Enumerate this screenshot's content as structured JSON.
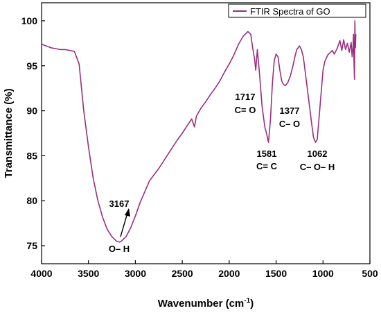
{
  "chart_data": {
    "type": "line",
    "title": "",
    "xlabel": "Wavenumber (cm",
    "xlabel_sup": "-1",
    "xlabel_end": ")",
    "ylabel": "Transmittance (%)",
    "xlim": [
      4000,
      500
    ],
    "ylim": [
      73,
      102
    ],
    "x_reversed": true,
    "grid": false,
    "legend_position": "top-right",
    "x_ticks": [
      4000,
      3500,
      3000,
      2500,
      2000,
      1500,
      1000,
      500
    ],
    "y_ticks": [
      75,
      80,
      85,
      90,
      95,
      100
    ],
    "series": [
      {
        "name": "FTIR Spectra of GO",
        "color": "#9b2d7f",
        "x": [
          4000,
          3950,
          3900,
          3850,
          3800,
          3750,
          3700,
          3650,
          3600,
          3550,
          3500,
          3450,
          3400,
          3350,
          3300,
          3250,
          3200,
          3167,
          3150,
          3100,
          3050,
          3000,
          2950,
          2900,
          2850,
          2800,
          2750,
          2700,
          2650,
          2600,
          2550,
          2500,
          2450,
          2400,
          2370,
          2350,
          2300,
          2250,
          2200,
          2150,
          2100,
          2050,
          2000,
          1950,
          1900,
          1850,
          1800,
          1770,
          1750,
          1730,
          1717,
          1700,
          1680,
          1650,
          1620,
          1600,
          1581,
          1560,
          1540,
          1520,
          1500,
          1480,
          1460,
          1440,
          1420,
          1400,
          1377,
          1350,
          1320,
          1300,
          1280,
          1250,
          1230,
          1210,
          1200,
          1180,
          1150,
          1120,
          1100,
          1080,
          1062,
          1040,
          1020,
          1000,
          980,
          950,
          920,
          900,
          880,
          850,
          820,
          800,
          780,
          760,
          740,
          720,
          700,
          690,
          680,
          675,
          670,
          665,
          660,
          655,
          650
        ],
        "y": [
          97.4,
          97.2,
          97.0,
          96.9,
          96.8,
          96.8,
          96.7,
          96.6,
          95.2,
          90.0,
          86.0,
          82.5,
          80.0,
          78.2,
          76.8,
          76.0,
          75.5,
          75.4,
          75.5,
          76.0,
          77.0,
          78.3,
          79.8,
          81.0,
          82.2,
          82.9,
          83.6,
          84.4,
          85.2,
          86.0,
          86.8,
          87.5,
          88.3,
          89.1,
          88.2,
          89.4,
          90.3,
          91.0,
          91.8,
          92.5,
          93.3,
          94.3,
          95.2,
          96.2,
          97.4,
          98.3,
          98.8,
          98.5,
          97.0,
          95.8,
          94.5,
          96.8,
          94.5,
          90.5,
          88.2,
          87.4,
          86.5,
          89.0,
          93.0,
          95.6,
          96.3,
          96.0,
          94.5,
          93.3,
          92.9,
          92.8,
          93.1,
          93.8,
          95.0,
          96.0,
          96.8,
          97.2,
          96.8,
          96.0,
          95.2,
          93.5,
          91.0,
          88.5,
          87.0,
          86.5,
          86.8,
          89.5,
          92.0,
          94.5,
          95.5,
          96.2,
          96.5,
          96.7,
          96.3,
          96.9,
          97.8,
          96.7,
          97.9,
          96.8,
          97.5,
          96.5,
          97.6,
          96.0,
          97.0,
          98.5,
          95.5,
          93.5,
          100.0,
          97.0,
          98.5
        ]
      }
    ],
    "annotations": [
      {
        "label": "1717",
        "group": "C= O"
      },
      {
        "label": "1581",
        "group": "C= C"
      },
      {
        "label": "1377",
        "group": "C– O"
      },
      {
        "label": "1062",
        "group": "C– O– H"
      },
      {
        "label": "3167",
        "group": "O– H"
      }
    ]
  }
}
